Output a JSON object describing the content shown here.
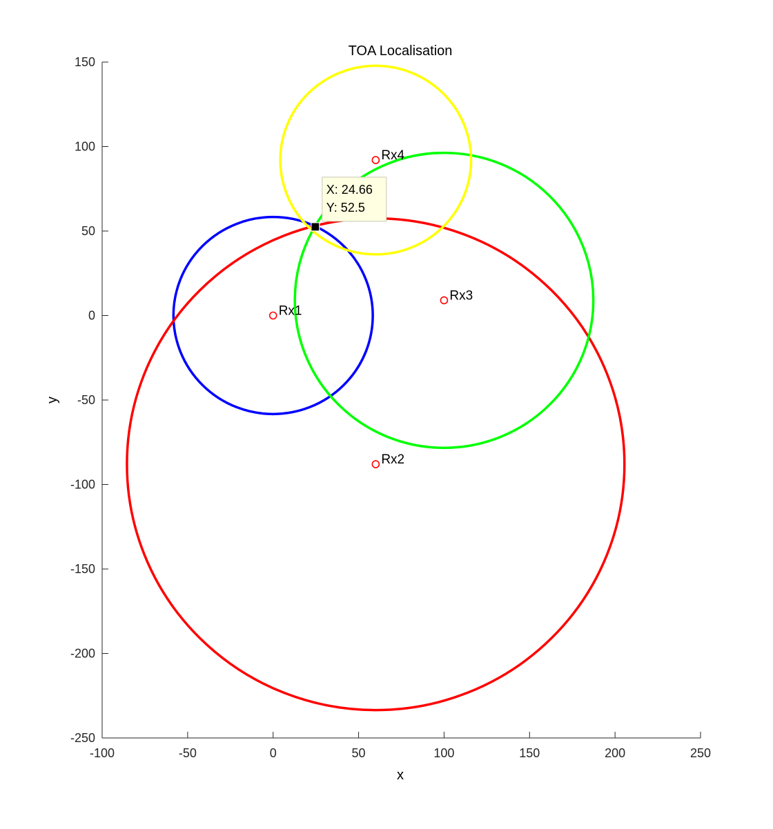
{
  "chart_data": {
    "type": "scatter",
    "title": "TOA Localisation",
    "xlabel": "x",
    "ylabel": "y",
    "xlim": [
      -100,
      250
    ],
    "ylim": [
      -250,
      150
    ],
    "xticks": [
      -100,
      -50,
      0,
      50,
      100,
      150,
      200,
      250
    ],
    "yticks": [
      -250,
      -200,
      -150,
      -100,
      -50,
      0,
      50,
      100,
      150
    ],
    "xtick_labels": [
      "-100",
      "-50",
      "0",
      "50",
      "100",
      "150",
      "200",
      "250"
    ],
    "ytick_labels": [
      "-250",
      "-200",
      "-150",
      "-100",
      "-50",
      "0",
      "50",
      "100",
      "150"
    ],
    "grid": false,
    "receivers": [
      {
        "label": "Rx1",
        "x": 0,
        "y": 0
      },
      {
        "label": "Rx2",
        "x": 60,
        "y": -88
      },
      {
        "label": "Rx3",
        "x": 100,
        "y": 9
      },
      {
        "label": "Rx4",
        "x": 60,
        "y": 92
      }
    ],
    "circles": [
      {
        "center_x": 0,
        "center_y": 0,
        "radius": 58.3,
        "color": "#0000ff"
      },
      {
        "center_x": 60,
        "center_y": -88,
        "radius": 145.5,
        "color": "#ff0000"
      },
      {
        "center_x": 100,
        "center_y": 9,
        "radius": 87.3,
        "color": "#00ff00"
      },
      {
        "center_x": 60,
        "center_y": 92,
        "radius": 55.8,
        "color": "#ffff00"
      }
    ],
    "marker_color": "#ff0000",
    "estimate": {
      "x": 24.66,
      "y": 52.5
    },
    "datatip": {
      "x_text": "X: 24.66",
      "y_text": "Y: 52.5"
    }
  }
}
